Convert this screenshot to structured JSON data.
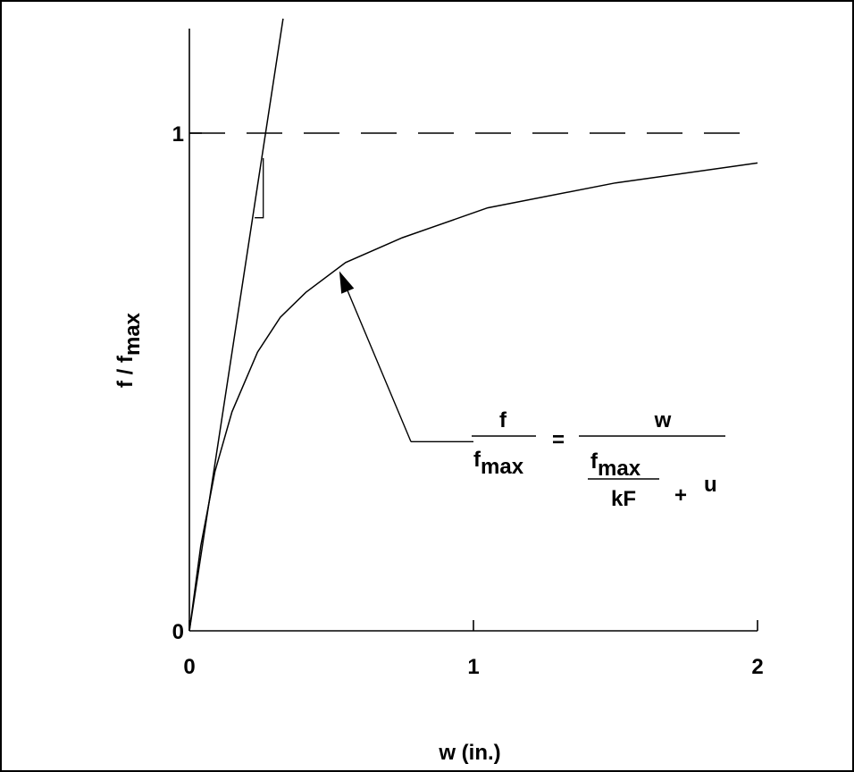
{
  "chart_data": {
    "type": "line",
    "title": "",
    "xlabel": "w (in.)",
    "ylabel": "f / f max",
    "ylabel_main": "f / f",
    "ylabel_sub": "max",
    "xlim": [
      0,
      2
    ],
    "ylim": [
      0,
      1.2
    ],
    "x_ticks": [
      {
        "value": 0,
        "label": "0"
      },
      {
        "value": 1,
        "label": "1"
      },
      {
        "value": 2,
        "label": "2"
      }
    ],
    "y_ticks": [
      {
        "value": 0,
        "label": "0"
      },
      {
        "value": 1,
        "label": "1"
      }
    ],
    "grid": false,
    "legend": "none",
    "series": [
      {
        "style": "solid",
        "x": [
          0,
          0.04,
          0.09,
          0.15,
          0.24,
          0.32,
          0.41,
          0.55,
          0.75,
          1.05,
          1.5,
          2.0
        ],
        "y": [
          0,
          0.17,
          0.32,
          0.44,
          0.56,
          0.63,
          0.68,
          0.74,
          0.79,
          0.85,
          0.9,
          0.94
        ]
      },
      {
        "style": "solid",
        "x": [
          0,
          0.33
        ],
        "y": [
          0,
          1.23
        ]
      },
      {
        "style": "dashed",
        "x": [
          0,
          2
        ],
        "y": [
          1,
          1
        ]
      }
    ],
    "slope_triangle": {
      "x0": 0.23,
      "y0": 0.83,
      "x1": 0.26,
      "y1": 0.95
    },
    "annotation": {
      "arrow_target": {
        "x": 0.53,
        "y": 0.72
      },
      "arrow_tail": {
        "x": 0.78,
        "y": 0.38
      },
      "leader_end": {
        "x": 1.0,
        "y": 0.38
      },
      "equation": {
        "lhs_num": "f",
        "lhs_den_main": "f",
        "lhs_den_sub": "max",
        "equals": "=",
        "rhs_num": "w",
        "inner_num_main": "f",
        "inner_num_sub": "max",
        "inner_den": "kF",
        "plus": "+",
        "u": "u"
      }
    }
  }
}
